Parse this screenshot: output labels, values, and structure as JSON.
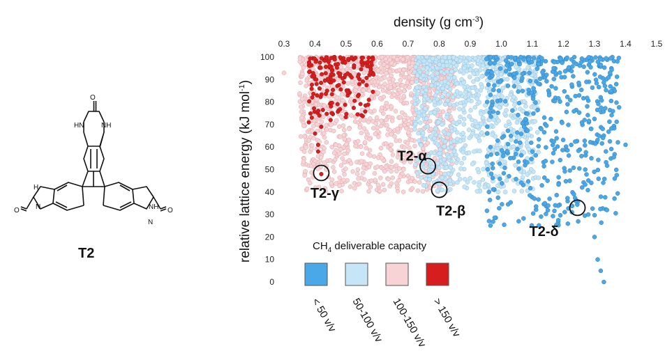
{
  "molecule": {
    "label": "T2",
    "atoms": {
      "N1": "N",
      "N2": "N",
      "H1": "H",
      "H2": "H",
      "O": "O",
      "NH": "NH",
      "HN": "HN"
    }
  },
  "chart_data": {
    "type": "scatter",
    "title": "",
    "xlabel": "density (g cm-3)",
    "xlabel_base": "density (g cm",
    "xlabel_sup": "-3",
    "xlabel_end": ")",
    "ylabel": "relative lattice energy (kJ mol-1)",
    "ylabel_base": "relative lattice energy (kJ mol",
    "ylabel_sup": "-1",
    "ylabel_end": ")",
    "x_axis_position": "top",
    "xlim": [
      0.3,
      1.5
    ],
    "ylim": [
      0,
      100
    ],
    "xticks": [
      "0.3",
      "0.4",
      "0.5",
      "0.6",
      "0.7",
      "0.8",
      "0.9",
      "1.0",
      "1.1",
      "1.2",
      "1.3",
      "1.4",
      "1.5"
    ],
    "yticks": [
      "0",
      "10",
      "20",
      "30",
      "40",
      "50",
      "60",
      "70",
      "80",
      "90",
      "100"
    ],
    "grid": false,
    "legend": {
      "title": "CH4 deliverable capacity",
      "title_base": "CH",
      "title_sub": "4",
      "title_rest": " deliverable capacity",
      "position": "bottom",
      "entries": [
        {
          "label": "< 50 v/v",
          "color": "#4aa8e8"
        },
        {
          "label": "50-100 v/v",
          "color": "#c6e6f8"
        },
        {
          "label": "100-150 v/v",
          "color": "#f7d3d6"
        },
        {
          "label": "> 150 v/v",
          "color": "#d71e1e"
        }
      ]
    },
    "series": [
      {
        "name": "< 50 v/v",
        "color": "#4aa8e8",
        "region": {
          "x_range": [
            0.95,
            1.38
          ],
          "y_range": [
            25,
            100
          ]
        },
        "points": [
          {
            "x": 1.33,
            "y": 0
          },
          {
            "x": 1.32,
            "y": 5
          },
          {
            "x": 1.31,
            "y": 10
          },
          {
            "x": 1.3,
            "y": 20
          },
          {
            "x": 1.28,
            "y": 30
          },
          {
            "x": 1.34,
            "y": 32
          },
          {
            "x": 1.4,
            "y": 61
          },
          {
            "x": 1.37,
            "y": 88
          },
          {
            "x": 1.14,
            "y": 35
          },
          {
            "x": 0.96,
            "y": 40
          },
          {
            "x": 1.24,
            "y": 36
          },
          {
            "x": 1.26,
            "y": 42
          },
          {
            "x": 1.22,
            "y": 45
          },
          {
            "x": 1.27,
            "y": 50
          },
          {
            "x": 1.29,
            "y": 55
          }
        ]
      },
      {
        "name": "50-100 v/v",
        "color": "#c6e6f8",
        "region": {
          "x_range": [
            0.72,
            1.12
          ],
          "y_range": [
            40,
            100
          ]
        },
        "points": [
          {
            "x": 0.99,
            "y": 40
          },
          {
            "x": 0.88,
            "y": 55
          },
          {
            "x": 0.84,
            "y": 60
          }
        ]
      },
      {
        "name": "100-150 v/v",
        "color": "#f7d3d6",
        "region": {
          "x_range": [
            0.35,
            0.85
          ],
          "y_range": [
            40,
            100
          ]
        },
        "points": [
          {
            "x": 0.3,
            "y": 93
          },
          {
            "x": 0.39,
            "y": 80
          },
          {
            "x": 0.4,
            "y": 75
          },
          {
            "x": 0.8,
            "y": 42
          },
          {
            "x": 0.79,
            "y": 48
          },
          {
            "x": 0.77,
            "y": 52
          }
        ]
      },
      {
        "name": "> 150 v/v",
        "color": "#d71e1e",
        "region": {
          "x_range": [
            0.38,
            0.59
          ],
          "y_range": [
            73,
            100
          ]
        },
        "points": [
          {
            "x": 0.42,
            "y": 48
          },
          {
            "x": 0.41,
            "y": 58
          },
          {
            "x": 0.41,
            "y": 61
          },
          {
            "x": 0.4,
            "y": 66
          },
          {
            "x": 0.42,
            "y": 69
          },
          {
            "x": 0.38,
            "y": 71
          },
          {
            "x": 0.45,
            "y": 72
          }
        ]
      }
    ],
    "annotations": [
      {
        "label": "T2-γ",
        "x": 0.42,
        "y": 48.5,
        "label_x": 0.385,
        "label_y": 37.5
      },
      {
        "label": "T2-α",
        "x": 0.763,
        "y": 51.5,
        "label_x": 0.665,
        "label_y": 54
      },
      {
        "label": "T2-β",
        "x": 0.8,
        "y": 41,
        "label_x": 0.79,
        "label_y": 29.5
      },
      {
        "label": "T2-δ",
        "x": 1.245,
        "y": 33,
        "label_x": 1.09,
        "label_y": 20.5
      }
    ]
  }
}
